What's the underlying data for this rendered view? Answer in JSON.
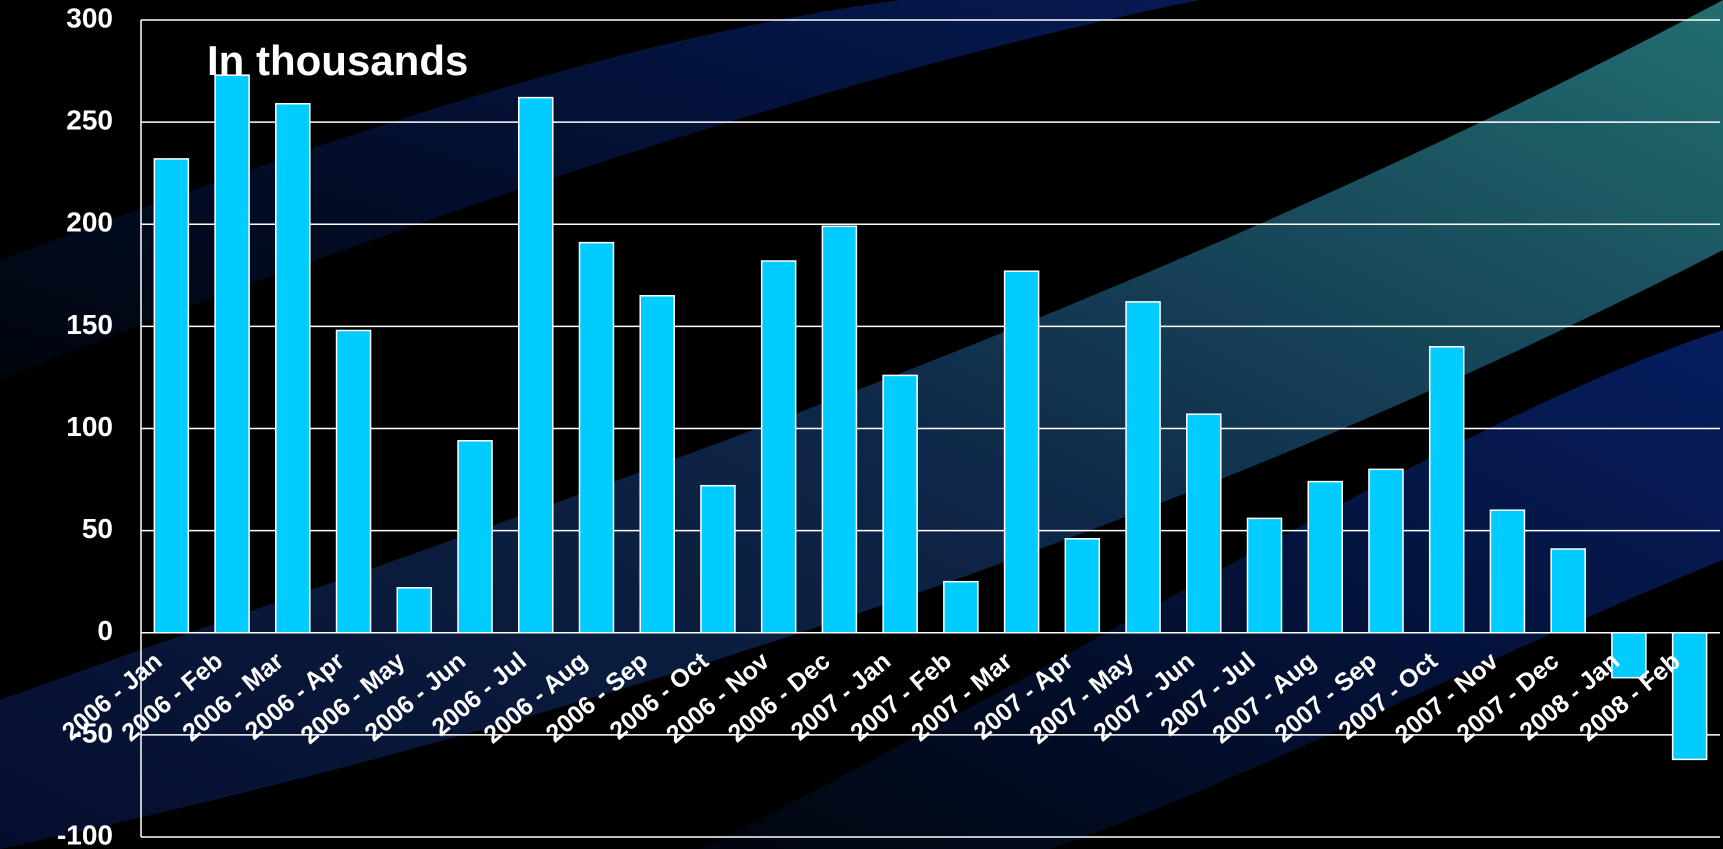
{
  "chart_data": {
    "type": "bar",
    "title": "In thousands",
    "categories": [
      "2006 - Jan",
      "2006 - Feb",
      "2006 - Mar",
      "2006 - Apr",
      "2006 - May",
      "2006 - Jun",
      "2006 - Jul",
      "2006 - Aug",
      "2006 - Sep",
      "2006 - Oct",
      "2006 - Nov",
      "2006 - Dec",
      "2007 - Jan",
      "2007 - Feb",
      "2007 - Mar",
      "2007 - Apr",
      "2007 - May",
      "2007 - Jun",
      "2007 - Jul",
      "2007 - Aug",
      "2007 - Sep",
      "2007 - Oct",
      "2007 - Nov",
      "2007 - Dec",
      "2008 - Jan",
      "2008 - Feb"
    ],
    "values": [
      232,
      273,
      259,
      148,
      22,
      94,
      262,
      191,
      165,
      72,
      182,
      199,
      126,
      25,
      177,
      46,
      162,
      107,
      56,
      74,
      80,
      140,
      60,
      41,
      -22,
      -62
    ],
    "color": "#00ccff",
    "ylim": [
      -100,
      300
    ],
    "yticks": [
      -100,
      -50,
      0,
      50,
      100,
      150,
      200,
      250,
      300
    ],
    "grid": true
  }
}
